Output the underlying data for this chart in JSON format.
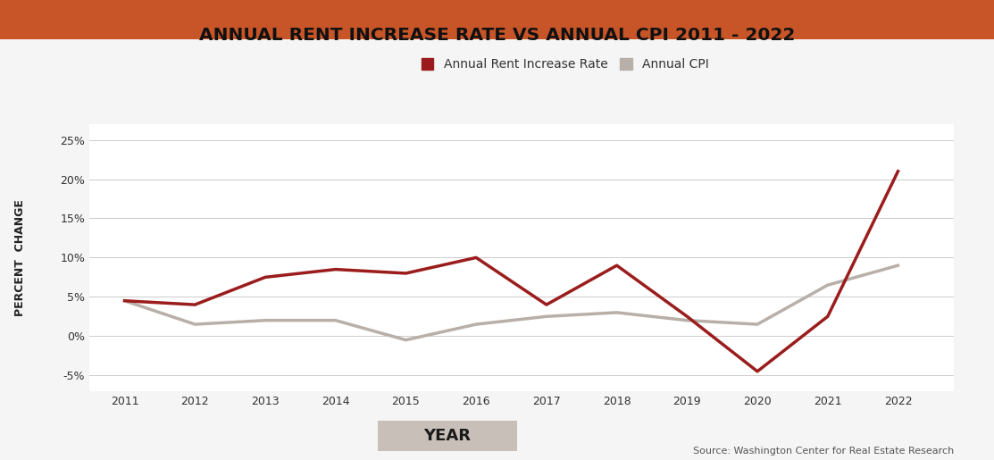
{
  "title": "ANNUAL RENT INCREASE RATE VS ANNUAL CPI 2011 - 2022",
  "xlabel": "YEAR",
  "ylabel": "PERCENT  CHANGE",
  "years": [
    2011,
    2012,
    2013,
    2014,
    2015,
    2016,
    2017,
    2018,
    2019,
    2020,
    2021,
    2022
  ],
  "rent_increase": [
    4.5,
    4.0,
    7.5,
    8.5,
    8.0,
    10.0,
    4.0,
    9.0,
    2.5,
    -4.5,
    2.5,
    21.0
  ],
  "annual_cpi": [
    4.5,
    1.5,
    2.0,
    2.0,
    -0.5,
    1.5,
    2.5,
    3.0,
    2.0,
    1.5,
    6.5,
    9.0
  ],
  "rent_color": "#9B1C1C",
  "cpi_color": "#B8AFA8",
  "top_bar_color": "#C85528",
  "background_color": "#F5F5F5",
  "plot_bg_color": "#FFFFFF",
  "ylim": [
    -7,
    27
  ],
  "yticks": [
    -5,
    0,
    5,
    10,
    15,
    20,
    25
  ],
  "source_text": "Source: Washington Center for Real Estate Research",
  "legend_rent_label": "Annual Rent Increase Rate",
  "legend_cpi_label": "Annual CPI",
  "xlabel_bg_color": "#C8C0B8"
}
